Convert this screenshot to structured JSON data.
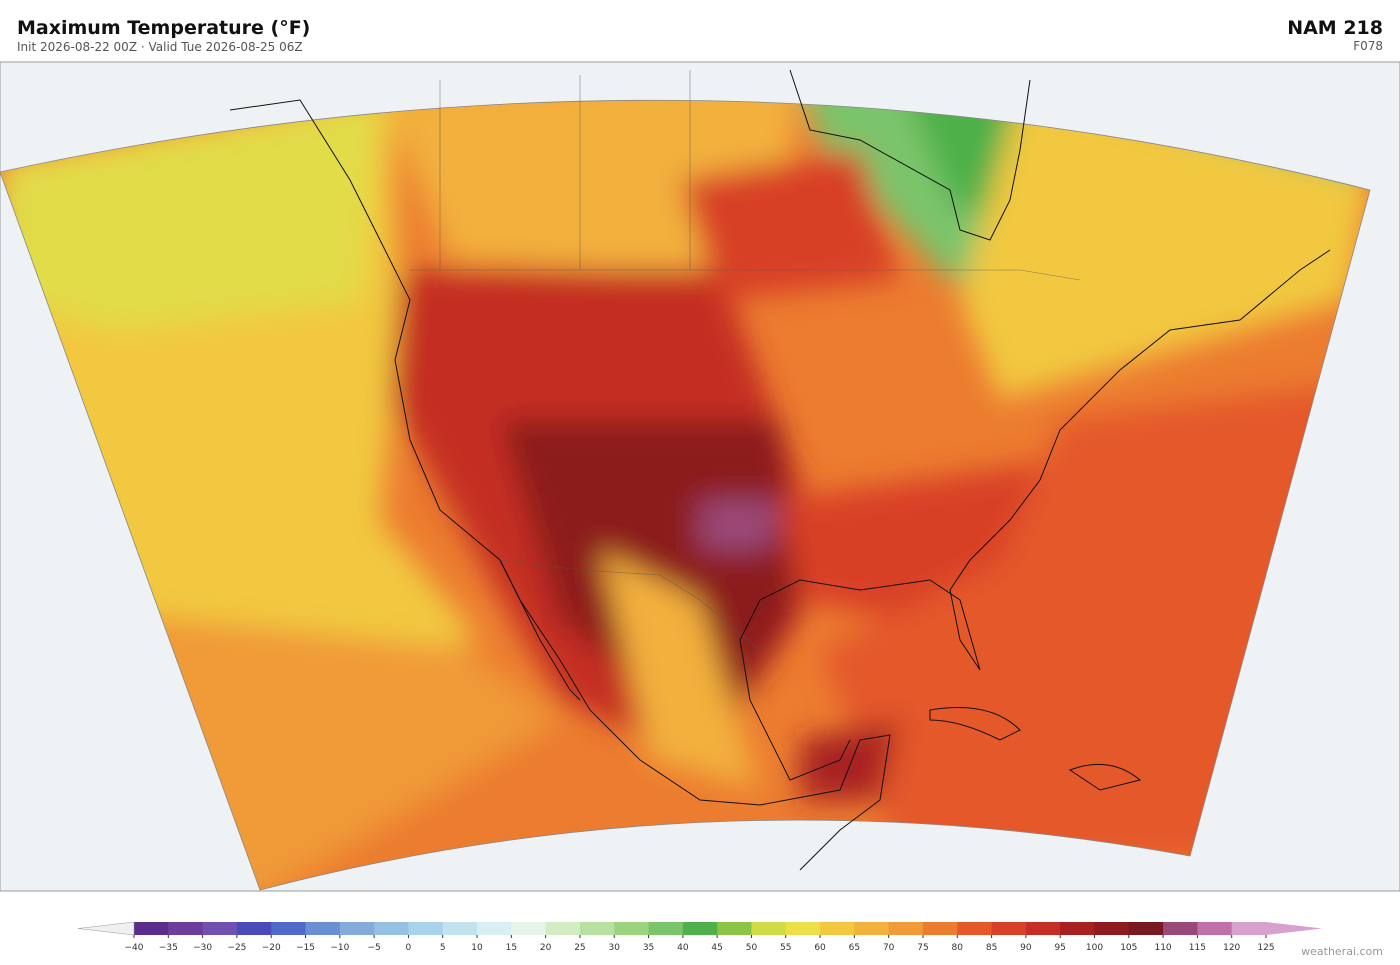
{
  "header": {
    "title": "Maximum Temperature  (°F)",
    "subtitle": "Init 2026-08-22 00Z  ·  Valid Tue 2026-08-25 06Z",
    "model": "NAM  218",
    "forecast_hour": "F078"
  },
  "colorbar": {
    "ticks": [
      {
        "value": -40,
        "label": "−40"
      },
      {
        "value": -35,
        "label": "−35"
      },
      {
        "value": -30,
        "label": "−30"
      },
      {
        "value": -25,
        "label": "−25"
      },
      {
        "value": -20,
        "label": "−20"
      },
      {
        "value": -15,
        "label": "−15"
      },
      {
        "value": -10,
        "label": "−10"
      },
      {
        "value": -5,
        "label": "−5"
      },
      0,
      5,
      10,
      15,
      20,
      25,
      30,
      35,
      40,
      45,
      50,
      55,
      60,
      65,
      70,
      75,
      80,
      85,
      90,
      95,
      100,
      105,
      110,
      115,
      120,
      125
    ],
    "colors": [
      "#5a2d8c",
      "#6e3d9c",
      "#7050b0",
      "#4a4bb8",
      "#4f6ac8",
      "#6a8fd2",
      "#86aadc",
      "#95c0e2",
      "#a9d3ea",
      "#c2e2ee",
      "#d8eef2",
      "#e6f4ea",
      "#d2ecc4",
      "#b8e0a0",
      "#9cd47e",
      "#7cc46a",
      "#4eb04a",
      "#8cc448",
      "#cedc48",
      "#ece048",
      "#f2c840",
      "#f2b03c",
      "#f09a38",
      "#ec7c30",
      "#e4582a",
      "#d84028",
      "#c42e24",
      "#a82020",
      "#8c1a1e",
      "#781820",
      "#9a4878",
      "#c070a8",
      "#d8a0cc"
    ],
    "under_color": "#f0f0f0",
    "over_color": "#d8a0cc"
  },
  "watermark": "weatherai.com"
}
